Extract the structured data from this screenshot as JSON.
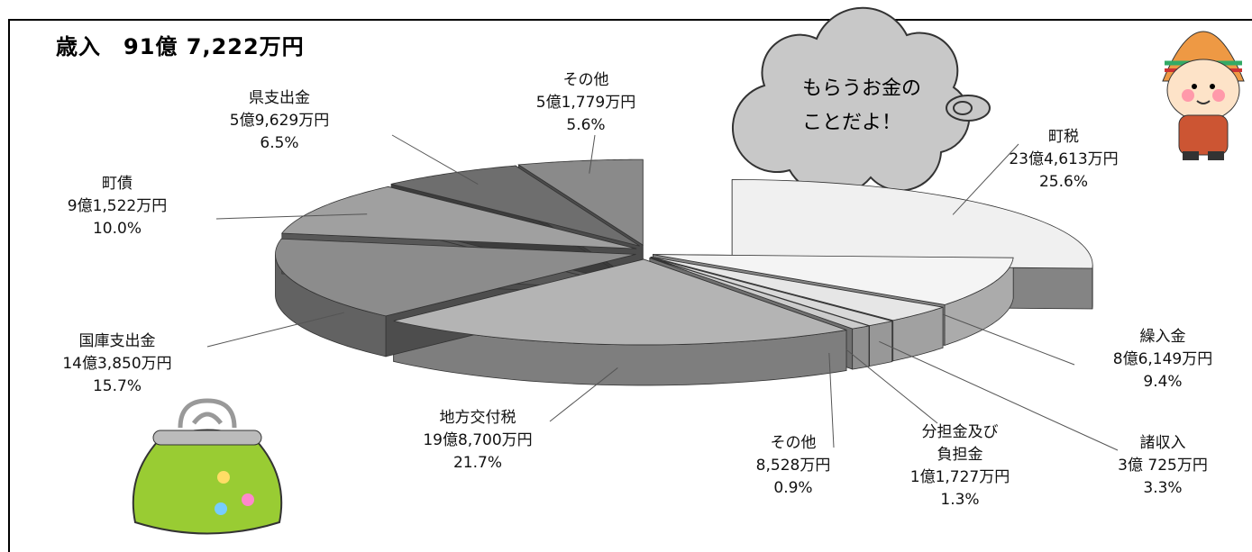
{
  "chart_data": {
    "type": "pie3d",
    "title": "歳入　91億 7,222万円",
    "annotations": [
      "もらうお金の",
      "ことだよ！"
    ],
    "categories": [
      "町税",
      "繰入金",
      "諸収入",
      "分担金及び負担金",
      "その他",
      "地方交付税",
      "国庫支出金",
      "町債",
      "県支出金",
      "その他"
    ],
    "amounts": [
      "23億4,613万円",
      "8億6,149万円",
      "3億 725万円",
      "1億1,727万円",
      "8,528万円",
      "19億8,700万円",
      "14億3,850万円",
      "9億1,522万円",
      "5億9,629万円",
      "5億1,779万円"
    ],
    "values": [
      25.6,
      9.4,
      3.3,
      1.3,
      0.9,
      21.7,
      15.7,
      10.0,
      6.5,
      5.6
    ],
    "value_labels": [
      "25.6%",
      "9.4%",
      "3.3%",
      "1.3%",
      "0.9%",
      "21.7%",
      "15.7%",
      "10.0%",
      "6.5%",
      "5.6%"
    ],
    "colors": [
      "#f0f0f0",
      "#f4f4f4",
      "#e6e6e6",
      "#d9d9d9",
      "#cccccc",
      "#b4b4b4",
      "#8c8c8c",
      "#a0a0a0",
      "#6e6e6e",
      "#8a8a8a"
    ]
  }
}
